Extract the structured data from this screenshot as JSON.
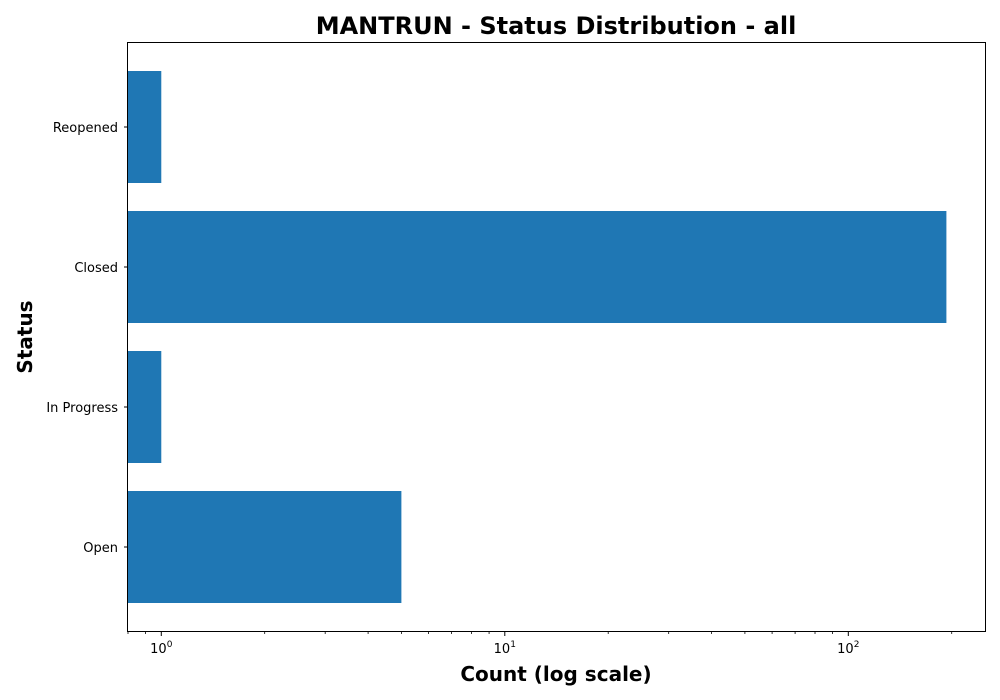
{
  "chart_data": {
    "type": "bar",
    "orientation": "horizontal",
    "title": "MANTRUN - Status Distribution - all",
    "xlabel": "Count (log scale)",
    "ylabel": "Status",
    "x_scale": "log",
    "xlim": [
      0.8,
      250
    ],
    "x_ticks": [
      {
        "value": 1,
        "base": "10",
        "exp": "0"
      },
      {
        "value": 10,
        "base": "10",
        "exp": "1"
      },
      {
        "value": 100,
        "base": "10",
        "exp": "2"
      }
    ],
    "categories": [
      "Open",
      "In Progress",
      "Closed",
      "Reopened"
    ],
    "values": [
      5,
      1,
      193,
      1
    ],
    "bar_color": "#1f77b4",
    "grid": false,
    "legend": "none"
  }
}
